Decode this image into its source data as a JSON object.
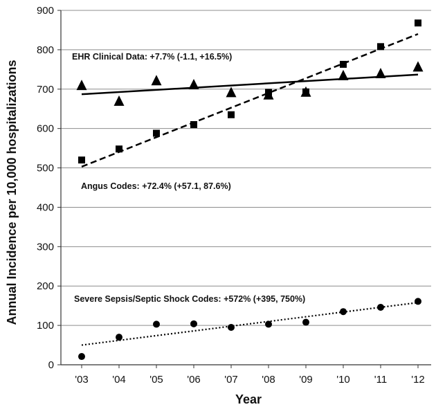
{
  "chart_data": {
    "type": "scatter",
    "xlabel": "Year",
    "ylabel": "Annual Incidence per 10,000 hospitalizations",
    "categories": [
      "'03",
      "'04",
      "'05",
      "'06",
      "'07",
      "'08",
      "'09",
      "'10",
      "'11",
      "'12"
    ],
    "ylim": [
      0,
      900
    ],
    "yticks": [
      0,
      100,
      200,
      300,
      400,
      500,
      600,
      700,
      800,
      900
    ],
    "grid": true,
    "legend": "none",
    "series": [
      {
        "marker": "triangle",
        "values": [
          710,
          670,
          722,
          712,
          692,
          686,
          693,
          735,
          740,
          757
        ],
        "trend": {
          "style": "solid",
          "start": 687,
          "end": 737
        },
        "annotation": "EHR Clinical Data: +7.7% (-1.1, +16.5%)"
      },
      {
        "marker": "square",
        "values": [
          520,
          548,
          588,
          610,
          635,
          692,
          693,
          763,
          808,
          868
        ],
        "trend": {
          "style": "dashed",
          "start": 503,
          "end": 840
        },
        "annotation": "Angus Codes: +72.4% (+57.1, 87.6%)"
      },
      {
        "marker": "circle",
        "values": [
          21,
          70,
          103,
          104,
          95,
          103,
          108,
          135,
          146,
          161
        ],
        "trend": {
          "style": "dotted",
          "start": 50,
          "end": 158
        },
        "annotation": "Severe Sepsis/Septic Shock Codes: +572% (+395, 750%)"
      }
    ]
  }
}
